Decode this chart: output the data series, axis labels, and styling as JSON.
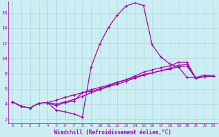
{
  "background_color": "#cceef2",
  "grid_color": "#aad8de",
  "line_color": "#aa00aa",
  "xlabel": "Windchill (Refroidissement éolien,°C)",
  "ylim": [
    1.5,
    17.5
  ],
  "xlim": [
    -0.5,
    23.5
  ],
  "yticks": [
    2,
    4,
    6,
    8,
    10,
    12,
    14,
    16
  ],
  "xticks": [
    0,
    1,
    2,
    3,
    4,
    5,
    6,
    7,
    8,
    9,
    10,
    11,
    12,
    13,
    14,
    15,
    16,
    17,
    18,
    19,
    20,
    21,
    22,
    23
  ],
  "series": [
    [
      4.3,
      3.7,
      3.5,
      4.1,
      4.2,
      3.2,
      3.0,
      2.7,
      2.3,
      8.9,
      11.9,
      14.1,
      15.7,
      16.9,
      17.3,
      17.0,
      11.8,
      10.2,
      9.3,
      8.9,
      7.5,
      7.5,
      7.8,
      7.7
    ],
    [
      4.3,
      3.7,
      3.5,
      4.1,
      4.2,
      3.8,
      4.2,
      4.4,
      5.5,
      5.7,
      6.0,
      6.4,
      6.8,
      7.2,
      7.7,
      8.2,
      8.5,
      8.8,
      9.0,
      9.5,
      9.5,
      7.4,
      7.6,
      7.7
    ],
    [
      4.3,
      3.7,
      3.5,
      4.1,
      4.2,
      4.0,
      4.3,
      4.6,
      5.0,
      5.5,
      5.9,
      6.3,
      6.6,
      7.0,
      7.4,
      7.8,
      8.1,
      8.4,
      8.7,
      9.1,
      9.2,
      7.4,
      7.6,
      7.7
    ],
    [
      4.3,
      3.7,
      3.5,
      4.1,
      4.2,
      4.5,
      4.9,
      5.2,
      5.5,
      5.9,
      6.2,
      6.5,
      6.9,
      7.2,
      7.5,
      7.9,
      8.1,
      8.4,
      8.6,
      8.9,
      9.0,
      7.4,
      7.6,
      7.7
    ]
  ]
}
